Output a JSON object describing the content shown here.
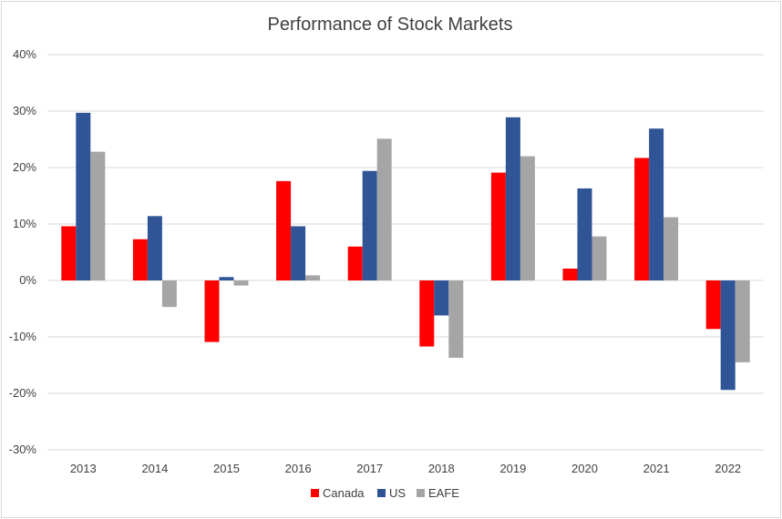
{
  "chart_data": {
    "type": "bar",
    "title": "Performance of Stock Markets",
    "xlabel": "",
    "ylabel": "",
    "categories": [
      "2013",
      "2014",
      "2015",
      "2016",
      "2017",
      "2018",
      "2019",
      "2020",
      "2021",
      "2022"
    ],
    "series": [
      {
        "name": "Canada",
        "color": "#ff0000",
        "values": [
          9.6,
          7.3,
          -10.9,
          17.6,
          6.0,
          -11.7,
          19.1,
          2.1,
          21.7,
          -8.6
        ]
      },
      {
        "name": "US",
        "color": "#2f5597",
        "values": [
          29.7,
          11.4,
          0.6,
          9.6,
          19.4,
          -6.2,
          28.9,
          16.3,
          26.9,
          -19.4
        ]
      },
      {
        "name": "EAFE",
        "color": "#a5a5a5",
        "values": [
          22.8,
          -4.7,
          -0.9,
          0.9,
          25.1,
          -13.7,
          22.0,
          7.8,
          11.2,
          -14.5
        ]
      }
    ],
    "ylim": [
      -30,
      40
    ],
    "yticks": [
      "-30%",
      "-20%",
      "-10%",
      "0%",
      "10%",
      "20%",
      "30%",
      "40%"
    ],
    "ytick_values": [
      -30,
      -20,
      -10,
      0,
      10,
      20,
      30,
      40
    ],
    "grid": true,
    "legend": "bottom"
  }
}
